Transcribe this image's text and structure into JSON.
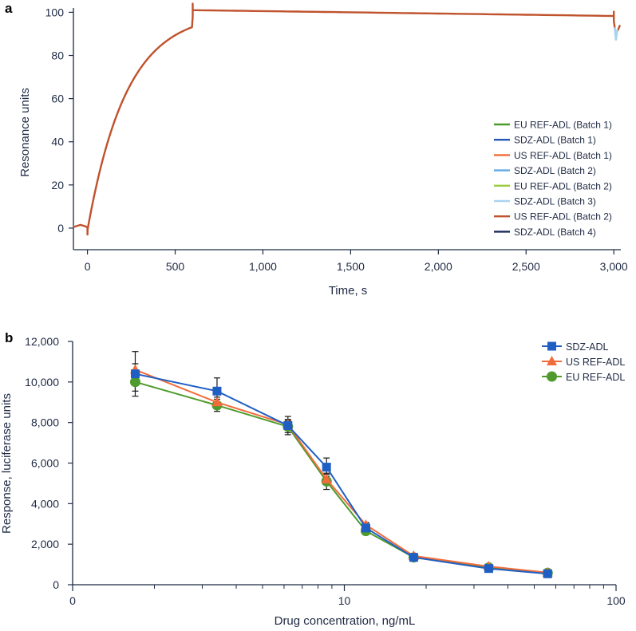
{
  "colors": {
    "axis": "#1f2a44",
    "eu_b1": "#4f9a2c",
    "sdz_b1": "#2056b8",
    "us_b1": "#f26b3a",
    "sdz_b2": "#62a8e6",
    "eu_b2": "#9ccc3c",
    "sdz_b3": "#a9d4f0",
    "us_b2": "#c0522d",
    "sdz_b4": "#1b2a5c",
    "sdz": "#1f5fc4",
    "us": "#f26b3a",
    "eu": "#4f9a2c",
    "error": "#1a1a1a"
  },
  "chart_data": [
    {
      "panel_label": "a",
      "type": "line",
      "title": "",
      "xlabel": "Time, s",
      "ylabel": "Resonance units",
      "xlim": [
        -80,
        3040
      ],
      "ylim": [
        -10,
        102
      ],
      "xticks": [
        0,
        500,
        1000,
        1500,
        2000,
        2500,
        3000
      ],
      "xtick_labels": [
        "0",
        "500",
        "1,000",
        "1,500",
        "2,000",
        "2,500",
        "3,000"
      ],
      "yticks": [
        0,
        20,
        40,
        60,
        80,
        100
      ],
      "ytick_labels": [
        "0",
        "20",
        "40",
        "60",
        "80",
        "100"
      ],
      "legend_position": "right-middle",
      "series": [
        {
          "name": "EU REF-ADL (Batch 1)",
          "color_key": "eu_b1"
        },
        {
          "name": "SDZ-ADL (Batch 1)",
          "color_key": "sdz_b1"
        },
        {
          "name": "US REF-ADL (Batch 1)",
          "color_key": "us_b1"
        },
        {
          "name": "SDZ-ADL (Batch 2)",
          "color_key": "sdz_b2"
        },
        {
          "name": "EU REF-ADL (Batch 2)",
          "color_key": "eu_b2"
        },
        {
          "name": "SDZ-ADL (Batch 3)",
          "color_key": "sdz_b3"
        },
        {
          "name": "US REF-ADL (Batch 2)",
          "color_key": "us_b2"
        },
        {
          "name": "SDZ-ADL (Batch 4)",
          "color_key": "sdz_b4"
        }
      ],
      "sensorgram": {
        "pre_injection": [
          [
            -80,
            0.5
          ],
          [
            -40,
            1.5
          ],
          [
            -10,
            0.8
          ],
          [
            0,
            0.2
          ]
        ],
        "injection_start": 0,
        "injection_end": 600,
        "association_plateau": 101,
        "association_rate": 0.0045,
        "dissociation_end_value": 98.3,
        "regeneration_time": 3000,
        "regeneration_dip": 90,
        "final_value": 94
      }
    },
    {
      "panel_label": "b",
      "type": "line",
      "title": "",
      "xlabel": "Drug concentration, ng/mL",
      "ylabel": "Response, luciferase units",
      "xscale": "log",
      "xlim": [
        1,
        100
      ],
      "ylim": [
        0,
        12000
      ],
      "xticks": [
        1,
        10,
        100
      ],
      "xtick_labels": [
        "0",
        "10",
        "100"
      ],
      "yticks": [
        0,
        2000,
        4000,
        6000,
        8000,
        10000,
        12000
      ],
      "ytick_labels": [
        "0",
        "2,000",
        "4,000",
        "6,000",
        "8,000",
        "10,000",
        "12,000"
      ],
      "legend_position": "top-right",
      "x": [
        1.7,
        3.4,
        6.2,
        8.6,
        12.0,
        18.0,
        34.0,
        56.0
      ],
      "series": [
        {
          "name": "SDZ-ADL",
          "marker": "square",
          "color_key": "sdz",
          "values": [
            10400,
            9550,
            7850,
            5800,
            2800,
            1350,
            800,
            540
          ],
          "error": [
            1100,
            650,
            450,
            450,
            250,
            120,
            80,
            60
          ]
        },
        {
          "name": "US REF-ADL",
          "marker": "triangle",
          "color_key": "us",
          "values": [
            10600,
            9000,
            7900,
            5200,
            2950,
            1420,
            900,
            600
          ],
          "error": [
            300,
            250,
            250,
            250,
            120,
            100,
            60,
            50
          ]
        },
        {
          "name": "EU REF-ADL",
          "marker": "circle",
          "color_key": "eu",
          "values": [
            10000,
            8850,
            7800,
            5100,
            2650,
            1350,
            850,
            580
          ],
          "error": [
            450,
            300,
            300,
            400,
            150,
            100,
            60,
            50
          ]
        }
      ]
    }
  ]
}
